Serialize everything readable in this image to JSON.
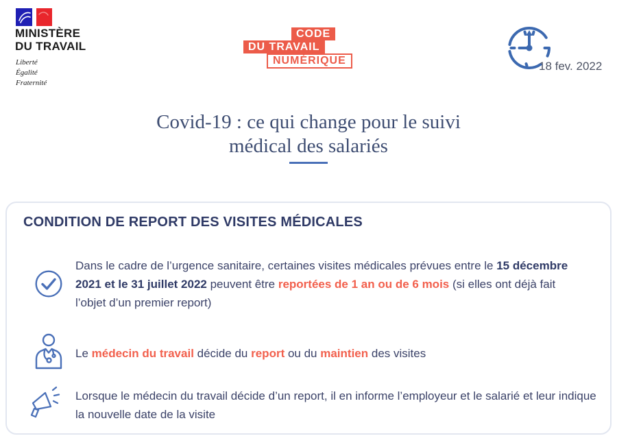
{
  "colors": {
    "coral": "#EC5B49",
    "coral-text": "#F2604D",
    "navy-body": "#3B4268",
    "navy-heading": "#2F3A66",
    "navy-title": "#3E4D72",
    "icon-blue": "#4A70B8",
    "clock-blue": "#3C69B0",
    "card-border": "#E2E6F0",
    "date-text": "#4E5465",
    "flag-blue": "#1F1FB4",
    "flag-red": "#E9262C",
    "ministry-text": "#1A1A1A"
  },
  "header": {
    "ministry": {
      "line1": "MINISTÈRE",
      "line2": "DU TRAVAIL",
      "motto": [
        "Liberté",
        "Égalité",
        "Fraternité"
      ],
      "flag_icon": "french-flag-icon"
    },
    "logo": {
      "line1": "CODE",
      "line2": "DU TRAVAIL",
      "line3": "NUMÉRIQUE"
    },
    "date": "18 fev. 2022",
    "date_icon": "clock-icon"
  },
  "title": {
    "line1": "Covid-19 : ce qui change pour le suivi",
    "line2": "médical des salariés"
  },
  "card": {
    "heading": "CONDITION DE REPORT DES VISITES MÉDICALES",
    "bullets": [
      {
        "icon": "check-circle-icon",
        "segments": [
          {
            "text": "Dans le cadre de l’urgence sanitaire, certaines visites médicales prévues entre le ",
            "style": "normal"
          },
          {
            "text": "15 décembre 2021 et le 31 juillet 2022",
            "style": "bold"
          },
          {
            "text": " peuvent être ",
            "style": "normal"
          },
          {
            "text": "reportées de 1 an ou de 6 mois",
            "style": "coral"
          },
          {
            "text": " (si elles ont déjà fait l’objet d’un premier report)",
            "style": "normal"
          }
        ]
      },
      {
        "icon": "doctor-icon",
        "segments": [
          {
            "text": "Le ",
            "style": "normal"
          },
          {
            "text": "médecin du travail",
            "style": "coral"
          },
          {
            "text": " décide du ",
            "style": "normal"
          },
          {
            "text": "report",
            "style": "coral"
          },
          {
            "text": " ou du ",
            "style": "normal"
          },
          {
            "text": "maintien",
            "style": "coral"
          },
          {
            "text": " des visites",
            "style": "normal"
          }
        ]
      },
      {
        "icon": "megaphone-icon",
        "segments": [
          {
            "text": "Lorsque le médecin du travail décide d’un report, il en informe l’employeur et le salarié et leur indique la nouvelle date de la visite",
            "style": "normal"
          }
        ]
      }
    ]
  }
}
